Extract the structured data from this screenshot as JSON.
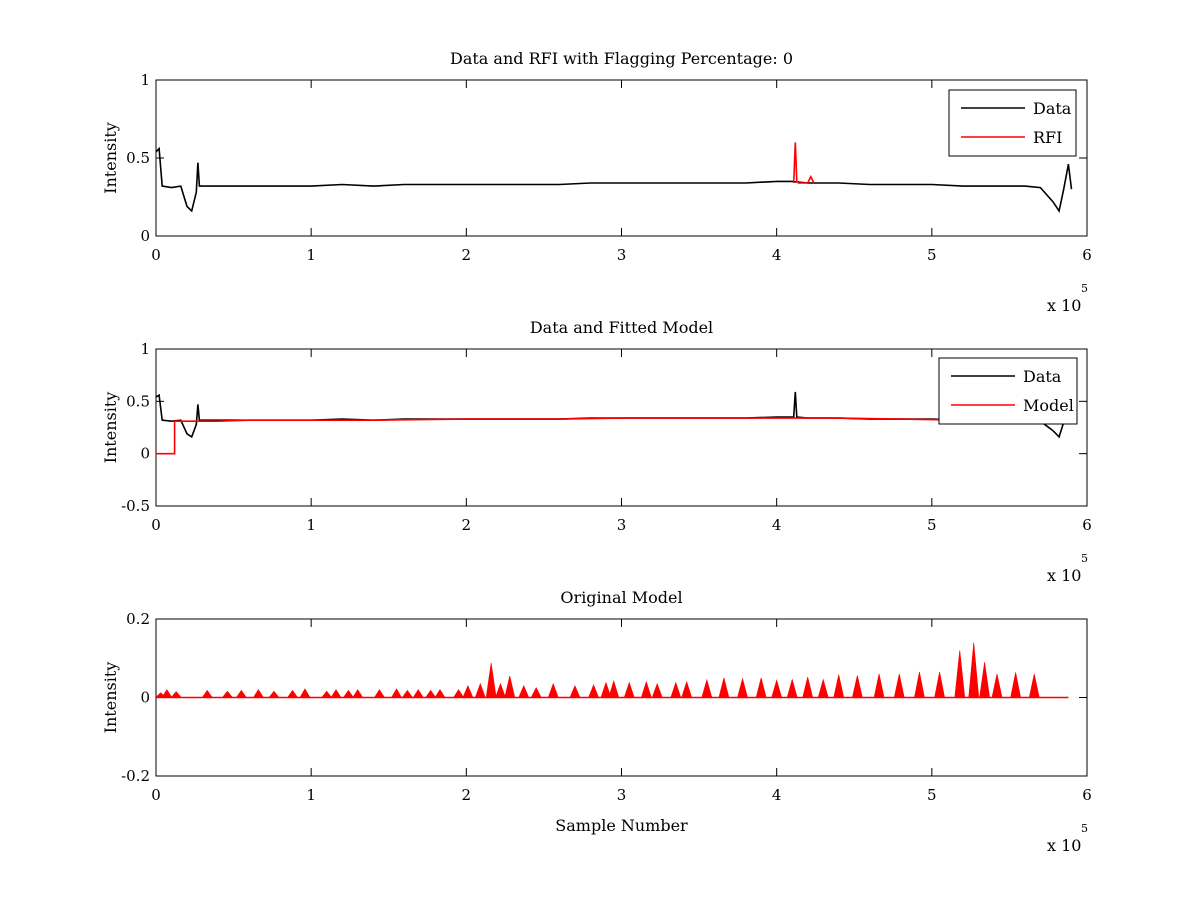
{
  "chart_data": [
    {
      "type": "line",
      "title": "Data and RFI with Flagging Percentage: 0",
      "xlabel": "",
      "ylabel": "Intensity",
      "xlim": [
        0,
        600000
      ],
      "ylim": [
        0,
        1
      ],
      "x_ticks": [
        0,
        1,
        2,
        3,
        4,
        5,
        6
      ],
      "y_ticks": [
        "0",
        "0.5",
        "1"
      ],
      "x_multiplier": "x 10",
      "x_multiplier_exp": "5",
      "legend": {
        "placement": "top-right",
        "entries": [
          "Data",
          "RFI"
        ]
      },
      "colors": {
        "Data": "#000000",
        "RFI": "#ff0000"
      },
      "series": [
        {
          "name": "Data",
          "points": [
            [
              0,
              0.54
            ],
            [
              2000,
              0.56
            ],
            [
              4000,
              0.32
            ],
            [
              10000,
              0.31
            ],
            [
              16000,
              0.32
            ],
            [
              20000,
              0.19
            ],
            [
              23000,
              0.16
            ],
            [
              26000,
              0.28
            ],
            [
              27000,
              0.47
            ],
            [
              28000,
              0.32
            ],
            [
              40000,
              0.32
            ],
            [
              60000,
              0.32
            ],
            [
              80000,
              0.32
            ],
            [
              100000,
              0.32
            ],
            [
              120000,
              0.33
            ],
            [
              140000,
              0.32
            ],
            [
              160000,
              0.33
            ],
            [
              180000,
              0.33
            ],
            [
              200000,
              0.33
            ],
            [
              220000,
              0.33
            ],
            [
              240000,
              0.33
            ],
            [
              260000,
              0.33
            ],
            [
              280000,
              0.34
            ],
            [
              300000,
              0.34
            ],
            [
              320000,
              0.34
            ],
            [
              340000,
              0.34
            ],
            [
              360000,
              0.34
            ],
            [
              380000,
              0.34
            ],
            [
              400000,
              0.35
            ],
            [
              410000,
              0.35
            ],
            [
              420000,
              0.34
            ],
            [
              440000,
              0.34
            ],
            [
              460000,
              0.33
            ],
            [
              480000,
              0.33
            ],
            [
              500000,
              0.33
            ],
            [
              520000,
              0.32
            ],
            [
              540000,
              0.32
            ],
            [
              560000,
              0.32
            ],
            [
              570000,
              0.31
            ],
            [
              578000,
              0.22
            ],
            [
              582000,
              0.16
            ],
            [
              585000,
              0.3
            ],
            [
              588000,
              0.46
            ],
            [
              590000,
              0.3
            ]
          ]
        },
        {
          "name": "RFI",
          "points": [
            [
              411000,
              0.34
            ],
            [
              412000,
              0.6
            ],
            [
              413000,
              0.35
            ],
            [
              414000,
              0.34
            ],
            [
              420000,
              0.34
            ],
            [
              422000,
              0.38
            ],
            [
              424000,
              0.34
            ]
          ]
        }
      ]
    },
    {
      "type": "line",
      "title": "Data and Fitted Model",
      "xlabel": "",
      "ylabel": "Intensity",
      "xlim": [
        0,
        600000
      ],
      "ylim": [
        -0.5,
        1
      ],
      "x_ticks": [
        0,
        1,
        2,
        3,
        4,
        5,
        6
      ],
      "y_ticks": [
        "-0.5",
        "0",
        "0.5",
        "1"
      ],
      "x_multiplier": "x 10",
      "x_multiplier_exp": "5",
      "legend": {
        "placement": "top-right",
        "entries": [
          "Data",
          "Model"
        ]
      },
      "colors": {
        "Data": "#000000",
        "Model": "#ff0000"
      },
      "series": [
        {
          "name": "Data",
          "points": [
            [
              0,
              0.54
            ],
            [
              2000,
              0.56
            ],
            [
              4000,
              0.32
            ],
            [
              10000,
              0.31
            ],
            [
              16000,
              0.32
            ],
            [
              20000,
              0.19
            ],
            [
              23000,
              0.16
            ],
            [
              26000,
              0.28
            ],
            [
              27000,
              0.47
            ],
            [
              28000,
              0.32
            ],
            [
              40000,
              0.32
            ],
            [
              60000,
              0.32
            ],
            [
              80000,
              0.32
            ],
            [
              100000,
              0.32
            ],
            [
              120000,
              0.33
            ],
            [
              140000,
              0.32
            ],
            [
              160000,
              0.33
            ],
            [
              180000,
              0.33
            ],
            [
              200000,
              0.33
            ],
            [
              220000,
              0.33
            ],
            [
              240000,
              0.33
            ],
            [
              260000,
              0.33
            ],
            [
              280000,
              0.34
            ],
            [
              300000,
              0.34
            ],
            [
              320000,
              0.34
            ],
            [
              340000,
              0.34
            ],
            [
              360000,
              0.34
            ],
            [
              380000,
              0.34
            ],
            [
              400000,
              0.35
            ],
            [
              410000,
              0.35
            ],
            [
              411000,
              0.35
            ],
            [
              412000,
              0.59
            ],
            [
              413000,
              0.35
            ],
            [
              420000,
              0.34
            ],
            [
              440000,
              0.34
            ],
            [
              460000,
              0.33
            ],
            [
              480000,
              0.33
            ],
            [
              500000,
              0.33
            ],
            [
              520000,
              0.32
            ],
            [
              540000,
              0.32
            ],
            [
              560000,
              0.32
            ],
            [
              570000,
              0.31
            ],
            [
              578000,
              0.22
            ],
            [
              582000,
              0.16
            ],
            [
              585000,
              0.3
            ],
            [
              588000,
              0.46
            ],
            [
              590000,
              0.3
            ]
          ]
        },
        {
          "name": "Model",
          "points": [
            [
              0,
              0.0
            ],
            [
              12000,
              0.0
            ],
            [
              12000,
              0.31
            ],
            [
              40000,
              0.31
            ],
            [
              60000,
              0.32
            ],
            [
              100000,
              0.32
            ],
            [
              140000,
              0.32
            ],
            [
              200000,
              0.33
            ],
            [
              260000,
              0.33
            ],
            [
              300000,
              0.34
            ],
            [
              360000,
              0.34
            ],
            [
              400000,
              0.34
            ],
            [
              440000,
              0.34
            ],
            [
              480000,
              0.33
            ],
            [
              520000,
              0.32
            ],
            [
              560000,
              0.32
            ],
            [
              587000,
              0.32
            ]
          ]
        }
      ]
    },
    {
      "type": "line",
      "title": "Original Model",
      "xlabel": "Sample Number",
      "ylabel": "Intensity",
      "xlim": [
        0,
        600000
      ],
      "ylim": [
        -0.2,
        0.2
      ],
      "x_ticks": [
        0,
        1,
        2,
        3,
        4,
        5,
        6
      ],
      "y_ticks": [
        "-0.2",
        "0",
        "0.2"
      ],
      "x_multiplier": "x 10",
      "x_multiplier_exp": "5",
      "colors": {
        "Model": "#ff0000"
      },
      "series": [
        {
          "name": "Model",
          "baseline": 0,
          "end_x": 588000,
          "spikes": [
            [
              3000,
              0.012
            ],
            [
              7000,
              0.02
            ],
            [
              13000,
              0.015
            ],
            [
              33000,
              0.018
            ],
            [
              46000,
              0.016
            ],
            [
              55000,
              0.018
            ],
            [
              66000,
              0.02
            ],
            [
              76000,
              0.016
            ],
            [
              88000,
              0.018
            ],
            [
              96000,
              0.022
            ],
            [
              110000,
              0.016
            ],
            [
              116000,
              0.02
            ],
            [
              124000,
              0.018
            ],
            [
              130000,
              0.02
            ],
            [
              144000,
              0.02
            ],
            [
              155000,
              0.022
            ],
            [
              162000,
              0.018
            ],
            [
              169000,
              0.02
            ],
            [
              177000,
              0.018
            ],
            [
              183000,
              0.02
            ],
            [
              195000,
              0.02
            ],
            [
              201000,
              0.03
            ],
            [
              209000,
              0.035
            ],
            [
              216000,
              0.088
            ],
            [
              222000,
              0.035
            ],
            [
              228000,
              0.055
            ],
            [
              237000,
              0.03
            ],
            [
              245000,
              0.025
            ],
            [
              256000,
              0.035
            ],
            [
              270000,
              0.03
            ],
            [
              282000,
              0.032
            ],
            [
              290000,
              0.038
            ],
            [
              295000,
              0.042
            ],
            [
              305000,
              0.038
            ],
            [
              316000,
              0.04
            ],
            [
              323000,
              0.035
            ],
            [
              335000,
              0.038
            ],
            [
              342000,
              0.04
            ],
            [
              355000,
              0.045
            ],
            [
              366000,
              0.05
            ],
            [
              378000,
              0.048
            ],
            [
              390000,
              0.05
            ],
            [
              400000,
              0.044
            ],
            [
              410000,
              0.046
            ],
            [
              420000,
              0.052
            ],
            [
              430000,
              0.046
            ],
            [
              440000,
              0.058
            ],
            [
              452000,
              0.056
            ],
            [
              466000,
              0.06
            ],
            [
              479000,
              0.06
            ],
            [
              492000,
              0.065
            ],
            [
              505000,
              0.065
            ],
            [
              518000,
              0.12
            ],
            [
              527000,
              0.14
            ],
            [
              534000,
              0.09
            ],
            [
              542000,
              0.06
            ],
            [
              554000,
              0.064
            ],
            [
              566000,
              0.06
            ]
          ]
        }
      ]
    }
  ]
}
